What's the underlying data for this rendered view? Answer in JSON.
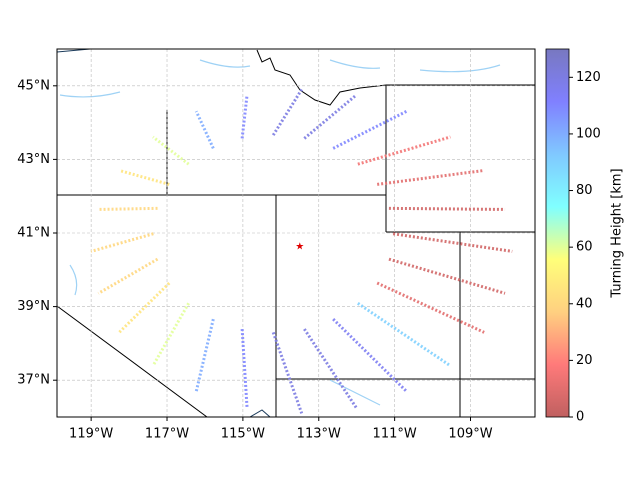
{
  "chart_data": {
    "type": "map-scatter",
    "colorbar_label": "Turning Height [km]",
    "xlim": [
      -119.9,
      -107.3
    ],
    "ylim": [
      36,
      46
    ],
    "xticks": [
      {
        "value": -119,
        "label": "119°W"
      },
      {
        "value": -117,
        "label": "117°W"
      },
      {
        "value": -115,
        "label": "115°W"
      },
      {
        "value": -113,
        "label": "113°W"
      },
      {
        "value": -111,
        "label": "111°W"
      },
      {
        "value": -109,
        "label": "109°W"
      }
    ],
    "yticks": [
      {
        "value": 37,
        "label": "37°N"
      },
      {
        "value": 39,
        "label": "39°N"
      },
      {
        "value": 41,
        "label": "41°N"
      },
      {
        "value": 43,
        "label": "43°N"
      },
      {
        "value": 45,
        "label": "45°N"
      }
    ],
    "grid": true,
    "clim": [
      0,
      130
    ],
    "cticks": [
      0,
      20,
      40,
      60,
      80,
      100,
      120
    ],
    "colormap": [
      "#c06060",
      "#ff7a7a",
      "#ffd080",
      "#ffff7a",
      "#80ffff",
      "#80c8ff",
      "#8080ff",
      "#7878c0"
    ],
    "source": {
      "lon": -113.5,
      "lat": 40.64,
      "color": "#e00000"
    },
    "rays": [
      {
        "lon": [
          -111.04,
          -107.9
        ],
        "lat": [
          40.98,
          40.5
        ],
        "value": 5
      },
      {
        "lon": [
          -111.15,
          -108.09
        ],
        "lat": [
          41.67,
          41.64
        ],
        "value": 5
      },
      {
        "lon": [
          -111.46,
          -108.64
        ],
        "lat": [
          42.32,
          42.7
        ],
        "value": 10
      },
      {
        "lon": [
          -111.97,
          -109.53
        ],
        "lat": [
          42.87,
          43.61
        ],
        "value": 15
      },
      {
        "lon": [
          -112.62,
          -110.68
        ],
        "lat": [
          43.3,
          44.31
        ],
        "value": 110
      },
      {
        "lon": [
          -113.38,
          -112.01
        ],
        "lat": [
          43.57,
          44.75
        ],
        "value": 120
      },
      {
        "lon": [
          -114.2,
          -113.45
        ],
        "lat": [
          43.66,
          44.9
        ],
        "value": 120
      },
      {
        "lon": [
          -115.02,
          -114.89
        ],
        "lat": [
          43.57,
          44.75
        ],
        "value": 110
      },
      {
        "lon": [
          -115.78,
          -116.23
        ],
        "lat": [
          43.3,
          44.31
        ],
        "value": 100
      },
      {
        "lon": [
          -116.43,
          -117.37
        ],
        "lat": [
          42.87,
          43.61
        ],
        "value": 60
      },
      {
        "lon": [
          -116.94,
          -118.26
        ],
        "lat": [
          42.32,
          42.7
        ],
        "value": 45
      },
      {
        "lon": [
          -117.25,
          -118.81
        ],
        "lat": [
          41.67,
          41.64
        ],
        "value": 40
      },
      {
        "lon": [
          -117.36,
          -119.0
        ],
        "lat": [
          40.98,
          40.5
        ],
        "value": 40
      },
      {
        "lon": [
          -117.25,
          -118.81
        ],
        "lat": [
          40.29,
          39.36
        ],
        "value": 40
      },
      {
        "lon": [
          -116.94,
          -118.26
        ],
        "lat": [
          39.64,
          38.3
        ],
        "value": 45
      },
      {
        "lon": [
          -116.43,
          -117.37
        ],
        "lat": [
          39.09,
          37.39
        ],
        "value": 60
      },
      {
        "lon": [
          -115.78,
          -116.23
        ],
        "lat": [
          38.66,
          36.69
        ],
        "value": 100
      },
      {
        "lon": [
          -115.02,
          -114.89
        ],
        "lat": [
          38.39,
          36.25
        ],
        "value": 110
      },
      {
        "lon": [
          -114.2,
          -113.45
        ],
        "lat": [
          38.3,
          36.1
        ],
        "value": 120
      },
      {
        "lon": [
          -113.38,
          -112.01
        ],
        "lat": [
          38.39,
          36.25
        ],
        "value": 120
      },
      {
        "lon": [
          -112.62,
          -110.68
        ],
        "lat": [
          38.66,
          36.69
        ],
        "value": 115
      },
      {
        "lon": [
          -111.97,
          -109.53
        ],
        "lat": [
          39.09,
          37.39
        ],
        "value": 90
      },
      {
        "lon": [
          -111.46,
          -108.64
        ],
        "lat": [
          39.64,
          38.3
        ],
        "value": 10
      },
      {
        "lon": [
          -111.15,
          -108.09
        ],
        "lat": [
          40.29,
          39.36
        ],
        "value": 5
      }
    ]
  }
}
